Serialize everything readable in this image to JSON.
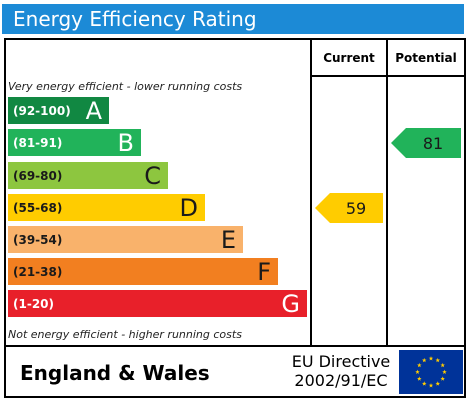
{
  "title": "Energy Efficiency Rating",
  "columns": {
    "current": "Current",
    "potential": "Potential"
  },
  "captions": {
    "top": "Very energy efficient - lower running costs",
    "bottom": "Not energy efficient - higher running costs"
  },
  "chart_data": {
    "type": "bar",
    "bands": [
      {
        "range": "(92-100)",
        "letter": "A",
        "color": "#118842",
        "text": "dark"
      },
      {
        "range": "(81-91)",
        "letter": "B",
        "color": "#21b35a",
        "text": "dark"
      },
      {
        "range": "(69-80)",
        "letter": "C",
        "color": "#8dc63f",
        "text": "light"
      },
      {
        "range": "(55-68)",
        "letter": "D",
        "color": "#ffcc00",
        "text": "light"
      },
      {
        "range": "(39-54)",
        "letter": "E",
        "color": "#f9b26b",
        "text": "light"
      },
      {
        "range": "(21-38)",
        "letter": "F",
        "color": "#f27f20",
        "text": "light"
      },
      {
        "range": "(1-20)",
        "letter": "G",
        "color": "#e8202a",
        "text": "dark"
      }
    ],
    "current": {
      "value": 59,
      "band": "D",
      "color": "#ffcc00"
    },
    "potential": {
      "value": 81,
      "band": "B",
      "color": "#21b35a"
    }
  },
  "footer": {
    "country": "England & Wales",
    "directive_line1": "EU Directive",
    "directive_line2": "2002/91/EC"
  },
  "colors": {
    "title_bar": "#1c8ad6",
    "eu_flag": "#003399",
    "eu_stars": "#ffcc00"
  }
}
